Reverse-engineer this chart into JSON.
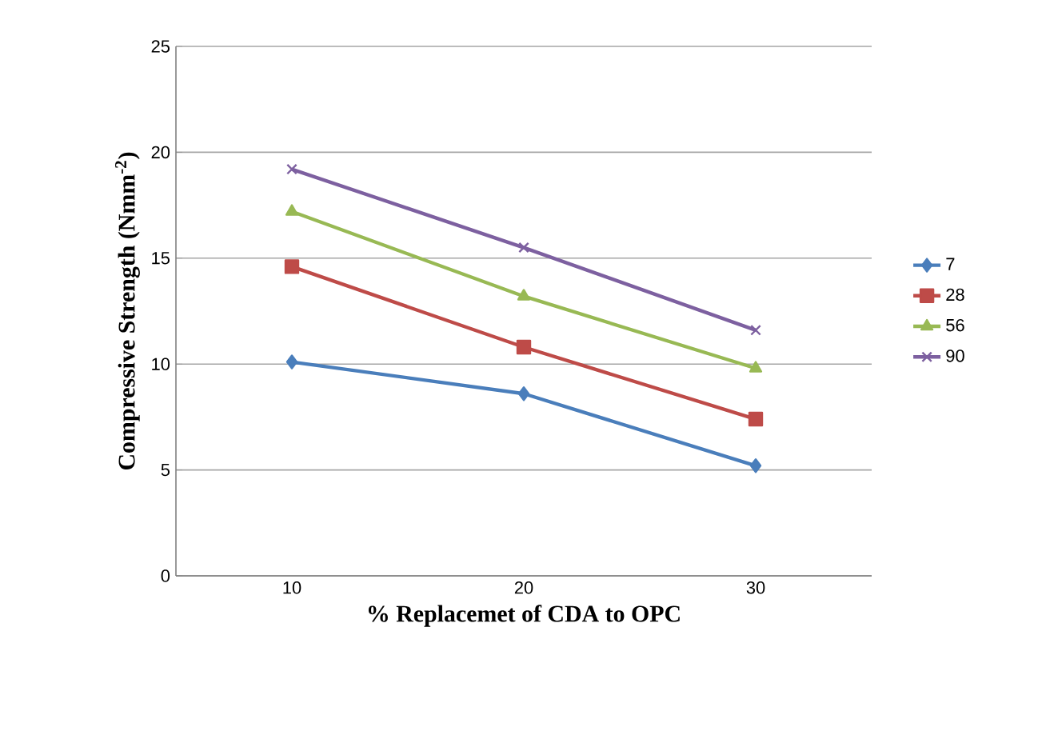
{
  "chart_data": {
    "type": "line",
    "xlabel": "% Replacemet of CDA to OPC",
    "ylabel": "Compressive Strength (Nmm$^{-2}$)",
    "categories": [
      "10",
      "20",
      "30"
    ],
    "series": [
      {
        "name": "7",
        "color": "#4a7ebb",
        "marker": "diamond",
        "values": [
          10.1,
          8.6,
          5.2
        ]
      },
      {
        "name": "28",
        "color": "#be4b48",
        "marker": "square",
        "values": [
          14.6,
          10.8,
          7.4
        ]
      },
      {
        "name": "56",
        "color": "#98b954",
        "marker": "triangle",
        "values": [
          17.2,
          13.2,
          9.8
        ]
      },
      {
        "name": "90",
        "color": "#7d60a0",
        "marker": "cross",
        "values": [
          19.2,
          15.5,
          11.6
        ]
      }
    ],
    "ylim": [
      0,
      25
    ],
    "yticks": [
      0,
      5,
      10,
      15,
      20,
      25
    ],
    "grid": "y",
    "legend": "right"
  }
}
